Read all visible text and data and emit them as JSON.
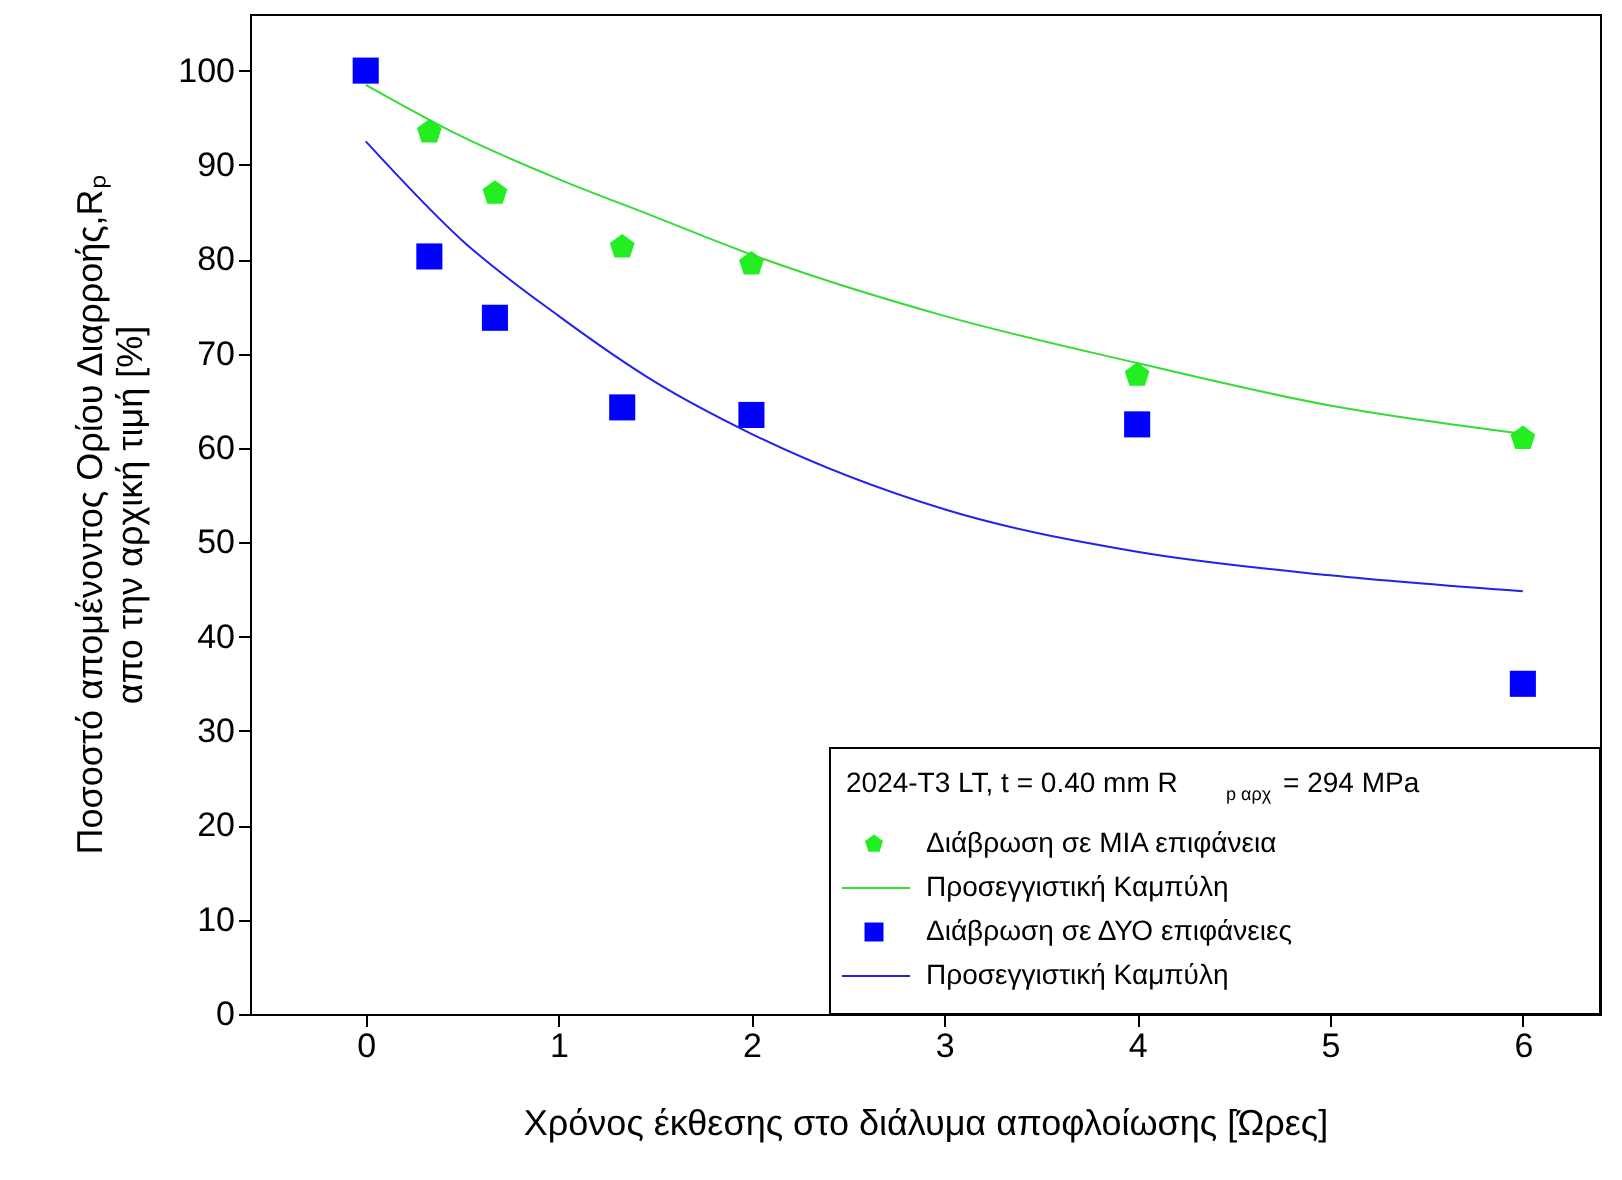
{
  "chart_data": {
    "type": "scatter",
    "xlabel": "Χρόνος έκθεσης στο διάλυμα αποφλοίωσης [Ώρες]",
    "ylabel": [
      "Ποσοστό απομένοντος Ορίου Διαρροής,Rₚ",
      "απο την αρχική τιμή [%]"
    ],
    "legend_title": "2024-T3 LT, t = 0.40 mm R$_{p αρχ}$= 294 MPa",
    "xlim": [
      -0.6,
      6.4
    ],
    "xticks": [
      0,
      1,
      2,
      3,
      4,
      5,
      6
    ],
    "ylim": [
      0,
      106
    ],
    "yticks": [
      0,
      10,
      20,
      30,
      40,
      50,
      60,
      70,
      80,
      90,
      100
    ],
    "grid": false,
    "legend": "bottom right",
    "series": [
      {
        "name": "Διάβρωση σε ΜΙΑ επιφάνεια",
        "color": "#22ee22",
        "x": [
          0.33,
          0.67,
          1.33,
          2,
          4,
          6
        ],
        "values": [
          93.5,
          87,
          81.3,
          79.5,
          67.7,
          61
        ]
      },
      {
        "name": "Προσεγγιστική Καμπύλη",
        "type": "line",
        "color": "#33dd33",
        "x": [
          0,
          0.5,
          1,
          1.5,
          2,
          3,
          4,
          5,
          6
        ],
        "values": [
          98.5,
          93,
          88.5,
          84.5,
          80.5,
          74,
          69,
          64.5,
          61.5
        ]
      },
      {
        "name": "Διάβρωση σε ΔΥΟ επιφάνειες",
        "marker": "square",
        "color": "#0000ff",
        "x": [
          0,
          0.33,
          0.67,
          1.33,
          2,
          4,
          6
        ],
        "values": [
          100,
          80.3,
          73.8,
          64.3,
          63.5,
          62.5,
          35
        ]
      },
      {
        "name": "Προσεγγιστική Καμπύλη",
        "type": "line",
        "color": "#2222ee",
        "x": [
          0,
          0.5,
          1,
          1.5,
          2,
          3,
          4,
          5,
          6
        ],
        "values": [
          92.5,
          82,
          74,
          67,
          61.5,
          53.5,
          49,
          46.5,
          44.8
        ]
      }
    ]
  }
}
